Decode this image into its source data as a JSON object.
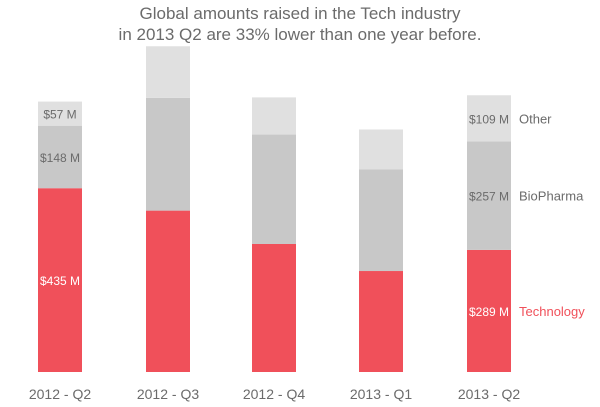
{
  "chart_data": {
    "type": "bar",
    "stacked": true,
    "title_lines": [
      "Global amounts raised in the Tech industry",
      "in 2013 Q2 are 33% lower than one year before."
    ],
    "categories": [
      "2012 - Q2",
      "2012 - Q3",
      "2012 - Q4",
      "2013 - Q1",
      "2013 - Q2"
    ],
    "series": [
      {
        "name": "Technology",
        "color": "#f0505a",
        "values": [
          435,
          382,
          303,
          239,
          289
        ],
        "labels": [
          "$435 M",
          "",
          "",
          "",
          "$289 M"
        ]
      },
      {
        "name": "BioPharma",
        "color": "#c8c8c8",
        "values": [
          148,
          267,
          259,
          241,
          257
        ],
        "labels": [
          "$148 M",
          "",
          "",
          "",
          "$257 M"
        ]
      },
      {
        "name": "Other",
        "color": "#e0e0e0",
        "values": [
          57,
          122,
          88,
          94,
          109
        ],
        "labels": [
          "$57 M",
          "",
          "",
          "",
          "$109 M"
        ]
      }
    ],
    "legend_labels": [
      "Other",
      "BioPharma",
      "Technology"
    ],
    "ylim": [
      0,
      800
    ],
    "xlabel": "",
    "ylabel": "",
    "grid": false
  }
}
